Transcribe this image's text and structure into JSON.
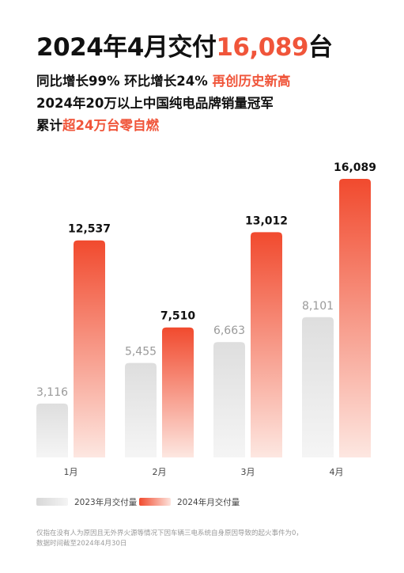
{
  "header": {
    "title_prefix": "2024年4月交付",
    "title_number": "16,089",
    "title_suffix": "台",
    "line1_main": "同比增长99% 环比增长24% ",
    "line1_accent": "再创历史新高",
    "line2": "2024年20万以上中国纯电品牌销量冠军",
    "line3_main": "累计",
    "line3_accent": "超24万台零自燃"
  },
  "chart_data": {
    "type": "bar",
    "categories": [
      "1月",
      "2月",
      "3月",
      "4月"
    ],
    "series": [
      {
        "name": "2023年月交付量",
        "values": [
          3116,
          5455,
          6663,
          8101
        ],
        "labels": [
          "3,116",
          "5,455",
          "6,663",
          "8,101"
        ]
      },
      {
        "name": "2024年月交付量",
        "values": [
          12537,
          7510,
          13012,
          16089
        ],
        "labels": [
          "12,537",
          "7,510",
          "13,012",
          "16,089"
        ]
      }
    ],
    "ylim": [
      0,
      16089
    ],
    "grid": false,
    "legend_position": "bottom-left"
  },
  "legend": {
    "item_2023": "2023年月交付量",
    "item_2024": "2024年月交付量"
  },
  "footnote": {
    "line1": "仅指在没有人为原因且无外界火源等情况下因车辆三电系统自身原因导致的起火事件为0，",
    "line2": "数据时间截至2024年4月30日"
  },
  "colors": {
    "accent": "#f0553a",
    "bar_2023_top": "#dedede",
    "bar_2023_bottom": "#f5f5f5",
    "bar_2024_top": "#f14a2e",
    "bar_2024_bottom": "#fde7e1"
  }
}
